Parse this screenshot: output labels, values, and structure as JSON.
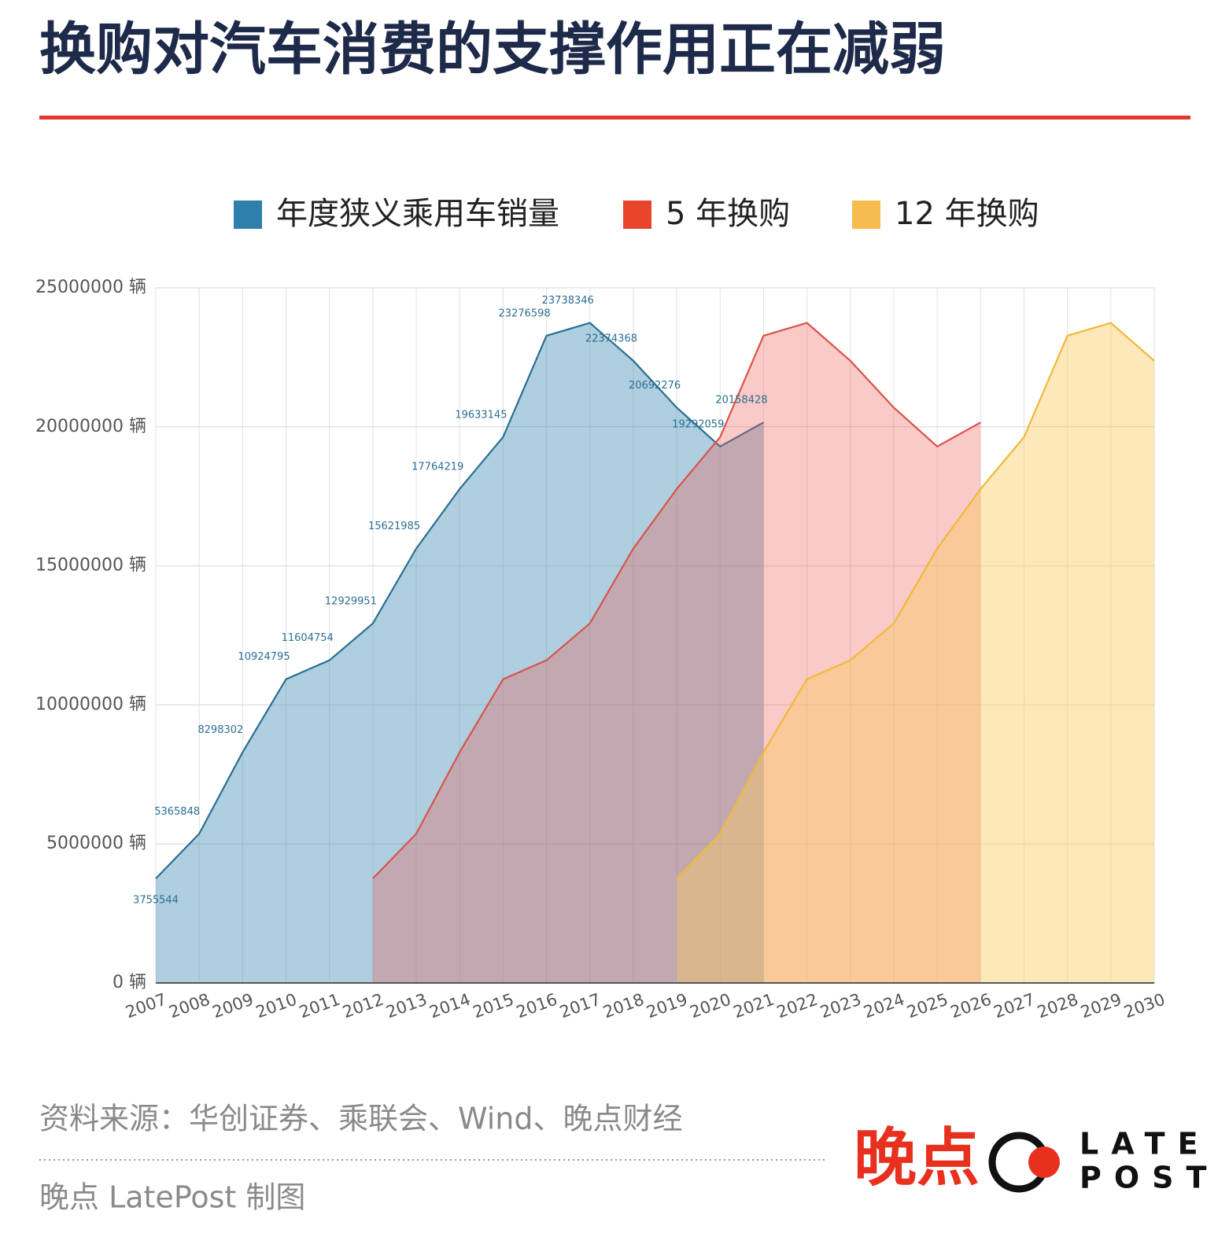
{
  "chart_data": {
    "type": "area",
    "title": "换购对汽车消费的支撑作用正在减弱",
    "categories": [
      "2007",
      "2008",
      "2009",
      "2010",
      "2011",
      "2012",
      "2013",
      "2014",
      "2015",
      "2016",
      "2017",
      "2018",
      "2019",
      "2020",
      "2021",
      "2022",
      "2023",
      "2024",
      "2025",
      "2026",
      "2027",
      "2028",
      "2029",
      "2030"
    ],
    "series": [
      {
        "name": "年度狭义乘用车销量",
        "color": "#2e7fab",
        "line": "#2a6f93",
        "fill": "rgba(46,127,171,0.38)",
        "labels": true,
        "values": [
          3755544,
          5365848,
          8298302,
          10924795,
          11604754,
          12929951,
          15621985,
          17764219,
          19633145,
          23276598,
          23738346,
          22374368,
          20692276,
          19292059,
          20158428,
          null,
          null,
          null,
          null,
          null,
          null,
          null,
          null,
          null
        ]
      },
      {
        "name": "5 年换购",
        "color": "#e8452c",
        "line": "#d9534a",
        "fill": "rgba(236,90,80,0.32)",
        "labels": false,
        "values": [
          null,
          null,
          null,
          null,
          null,
          3755544,
          5365848,
          8298302,
          10924795,
          11604754,
          12929951,
          15621985,
          17764219,
          19633145,
          23276598,
          23738346,
          22374368,
          20692276,
          19292059,
          20158428,
          null,
          null,
          null,
          null
        ]
      },
      {
        "name": "12 年换购",
        "color": "#f5bc4f",
        "line": "#f0b938",
        "fill": "rgba(250,200,90,0.42)",
        "labels": false,
        "values": [
          null,
          null,
          null,
          null,
          null,
          null,
          null,
          null,
          null,
          null,
          null,
          null,
          3755544,
          5365848,
          8298302,
          10924795,
          11604754,
          12929951,
          15621985,
          17764219,
          19633145,
          23276598,
          23738346,
          22374368
        ]
      }
    ],
    "ylim": [
      0,
      25000000
    ],
    "yticks": [
      {
        "value": 0,
        "label": "0 辆"
      },
      {
        "value": 5000000,
        "label": "5000000 辆"
      },
      {
        "value": 10000000,
        "label": "10000000 辆"
      },
      {
        "value": 15000000,
        "label": "15000000 辆"
      },
      {
        "value": 20000000,
        "label": "20000000 辆"
      },
      {
        "value": 25000000,
        "label": "25000000 辆"
      }
    ],
    "grid": true
  },
  "footer": {
    "source": "资料来源：华创证券、乘联会、Wind、晚点财经",
    "credit": "晚点 LatePost 制图",
    "logo": {
      "cn": "晚点",
      "top": "LATE",
      "bottom": "POST"
    }
  }
}
